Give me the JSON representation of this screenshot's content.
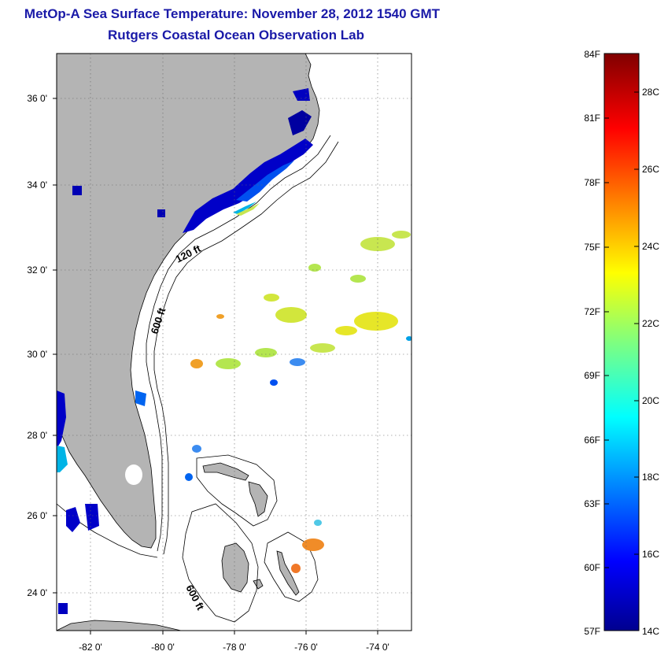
{
  "title": "MetOp-A Sea Surface Temperature:  November 28, 2012 1540 GMT",
  "subtitle": "Rutgers Coastal Ocean Observation Lab",
  "map": {
    "lon_range": [
      -83,
      -73
    ],
    "lat_range": [
      23,
      37
    ],
    "lon_ticks": [
      "-82 0'",
      "-80 0'",
      "-78 0'",
      "-76 0'",
      "-74 0'"
    ],
    "lat_ticks": [
      "36 0'",
      "34 0'",
      "32 0'",
      "30 0'",
      "28 0'",
      "26 0'",
      "24 0'"
    ],
    "isobaths": [
      {
        "label": "120 ft"
      },
      {
        "label": "600 ft"
      },
      {
        "label": "600 ft"
      }
    ],
    "land_color": "#b4b4b4"
  },
  "colorbar": {
    "fahrenheit_labels": [
      "84F",
      "81F",
      "78F",
      "75F",
      "72F",
      "69F",
      "66F",
      "63F",
      "60F",
      "57F"
    ],
    "celsius_labels": [
      "28C",
      "26C",
      "24C",
      "22C",
      "20C",
      "18C",
      "16C",
      "14C"
    ],
    "range_c": [
      14,
      29
    ]
  }
}
